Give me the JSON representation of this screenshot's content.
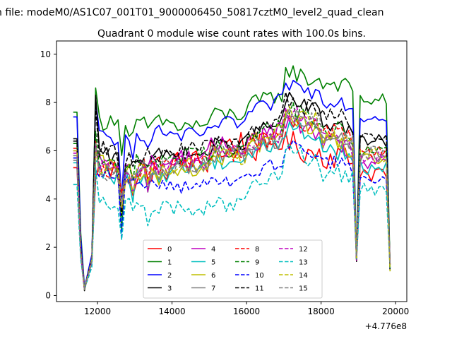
{
  "page": {
    "suptitle": "n file: modeM0/AS1C07_001T01_9000006450_50817cztM0_level2_quad_clean",
    "title": "Quadrant 0 module wise count rates with 100.0s bins."
  },
  "chart_data": {
    "type": "line",
    "title": "Quadrant 0 module wise count rates with 100.0s bins.",
    "xlabel": "",
    "ylabel": "",
    "x_offset_label": "+4.776e8",
    "xlim": [
      10900,
      20300
    ],
    "ylim": [
      -0.25,
      10.55
    ],
    "xticks": [
      12000,
      14000,
      16000,
      18000,
      20000
    ],
    "xtick_labels": [
      "12000",
      "14000",
      "16000",
      "18000",
      "20000"
    ],
    "yticks": [
      0,
      2,
      4,
      6,
      8,
      10
    ],
    "ytick_labels": [
      "0",
      "2",
      "4",
      "6",
      "8",
      "10"
    ],
    "grid": false,
    "legend": {
      "placement": "lower-center",
      "columns": 4
    },
    "x_segments": [
      [
        11350,
        18950
      ],
      [
        18950,
        19880
      ]
    ],
    "x_step": 100,
    "series": [
      {
        "name": "0",
        "color": "#ff0000",
        "dash": "solid",
        "dip": [
          5.3,
          1.8,
          0.25,
          1.6
        ],
        "base": [
          4.8,
          5.0,
          5.3,
          5.5,
          6.2,
          5.8,
          5.5,
          5.3
        ],
        "amp": 0.7
      },
      {
        "name": "1",
        "color": "#008000",
        "dash": "solid",
        "dip": [
          7.6,
          2.6,
          0.35,
          1.4
        ],
        "base": [
          8.6,
          7.0,
          7.2,
          7.0,
          7.4,
          7.7,
          8.5,
          8.3
        ],
        "amp": 0.45
      },
      {
        "name": "2",
        "color": "#0000ff",
        "dash": "solid",
        "dip": [
          7.4,
          2.4,
          0.3,
          1.7
        ],
        "base": [
          8.1,
          6.4,
          6.8,
          6.6,
          7.0,
          7.4,
          8.0,
          7.6
        ],
        "amp": 0.4
      },
      {
        "name": "3",
        "color": "#000000",
        "dash": "solid",
        "dip": [
          6.5,
          2.0,
          0.2,
          1.5
        ],
        "base": [
          8.3,
          5.6,
          5.8,
          5.8,
          6.1,
          6.5,
          7.3,
          6.6
        ],
        "amp": 0.45
      },
      {
        "name": "4",
        "color": "#bf00bf",
        "dash": "solid",
        "dip": [
          6.0,
          1.9,
          0.25,
          1.4
        ],
        "base": [
          5.9,
          5.3,
          5.5,
          5.7,
          6.1,
          6.3,
          6.4,
          5.7
        ],
        "amp": 0.5
      },
      {
        "name": "5",
        "color": "#00bfbf",
        "dash": "solid",
        "dip": [
          5.5,
          1.7,
          0.25,
          1.4
        ],
        "base": [
          5.6,
          4.9,
          5.1,
          5.3,
          5.5,
          5.7,
          6.2,
          5.5
        ],
        "amp": 0.5
      },
      {
        "name": "6",
        "color": "#bfbf00",
        "dash": "solid",
        "dip": [
          5.8,
          1.8,
          0.25,
          1.4
        ],
        "base": [
          5.8,
          5.2,
          5.0,
          5.2,
          5.6,
          6.0,
          6.6,
          5.8
        ],
        "amp": 0.5
      },
      {
        "name": "7",
        "color": "#808080",
        "dash": "solid",
        "dip": [
          5.6,
          1.7,
          0.25,
          1.4
        ],
        "base": [
          6.0,
          5.1,
          5.2,
          5.4,
          5.7,
          5.9,
          6.5,
          6.0
        ],
        "amp": 0.5
      },
      {
        "name": "8",
        "color": "#ff0000",
        "dash": "dashed",
        "dip": [
          6.1,
          1.9,
          0.25,
          1.5
        ],
        "base": [
          6.4,
          5.1,
          5.4,
          5.5,
          5.8,
          6.1,
          6.6,
          6.2
        ],
        "amp": 0.5
      },
      {
        "name": "9",
        "color": "#008000",
        "dash": "dashed",
        "dip": [
          6.3,
          1.9,
          0.25,
          1.5
        ],
        "base": [
          6.8,
          5.4,
          5.7,
          5.8,
          6.0,
          6.4,
          6.9,
          6.3
        ],
        "amp": 0.5
      },
      {
        "name": "10",
        "color": "#0000ff",
        "dash": "dashed",
        "dip": [
          5.7,
          1.7,
          0.25,
          1.4
        ],
        "base": [
          5.2,
          4.9,
          4.7,
          4.5,
          4.6,
          4.9,
          5.5,
          5.0
        ],
        "amp": 0.35
      },
      {
        "name": "11",
        "color": "#000000",
        "dash": "dashed",
        "dip": [
          6.4,
          1.9,
          0.25,
          1.5
        ],
        "base": [
          7.8,
          5.8,
          5.9,
          6.0,
          6.2,
          6.6,
          7.3,
          6.9
        ],
        "amp": 0.5
      },
      {
        "name": "12",
        "color": "#bf00bf",
        "dash": "dashed",
        "dip": [
          5.9,
          1.8,
          0.25,
          1.4
        ],
        "base": [
          6.2,
          5.2,
          5.4,
          5.6,
          5.8,
          6.1,
          6.8,
          5.9
        ],
        "amp": 0.5
      },
      {
        "name": "13",
        "color": "#00bfbf",
        "dash": "dashed",
        "dip": [
          4.6,
          1.5,
          0.3,
          1.2
        ],
        "base": [
          5.3,
          3.8,
          3.7,
          3.6,
          3.7,
          4.2,
          5.2,
          4.6
        ],
        "amp": 0.45
      },
      {
        "name": "14",
        "color": "#bfbf00",
        "dash": "dashed",
        "dip": [
          6.0,
          1.8,
          0.25,
          1.5
        ],
        "base": [
          6.1,
          5.0,
          5.2,
          5.4,
          5.7,
          6.2,
          6.8,
          6.0
        ],
        "amp": 0.5
      },
      {
        "name": "15",
        "color": "#808080",
        "dash": "dashed",
        "dip": [
          5.8,
          1.8,
          0.25,
          1.4
        ],
        "base": [
          6.3,
          5.0,
          5.3,
          5.4,
          5.8,
          6.0,
          6.8,
          6.1
        ],
        "amp": 0.5
      }
    ]
  }
}
